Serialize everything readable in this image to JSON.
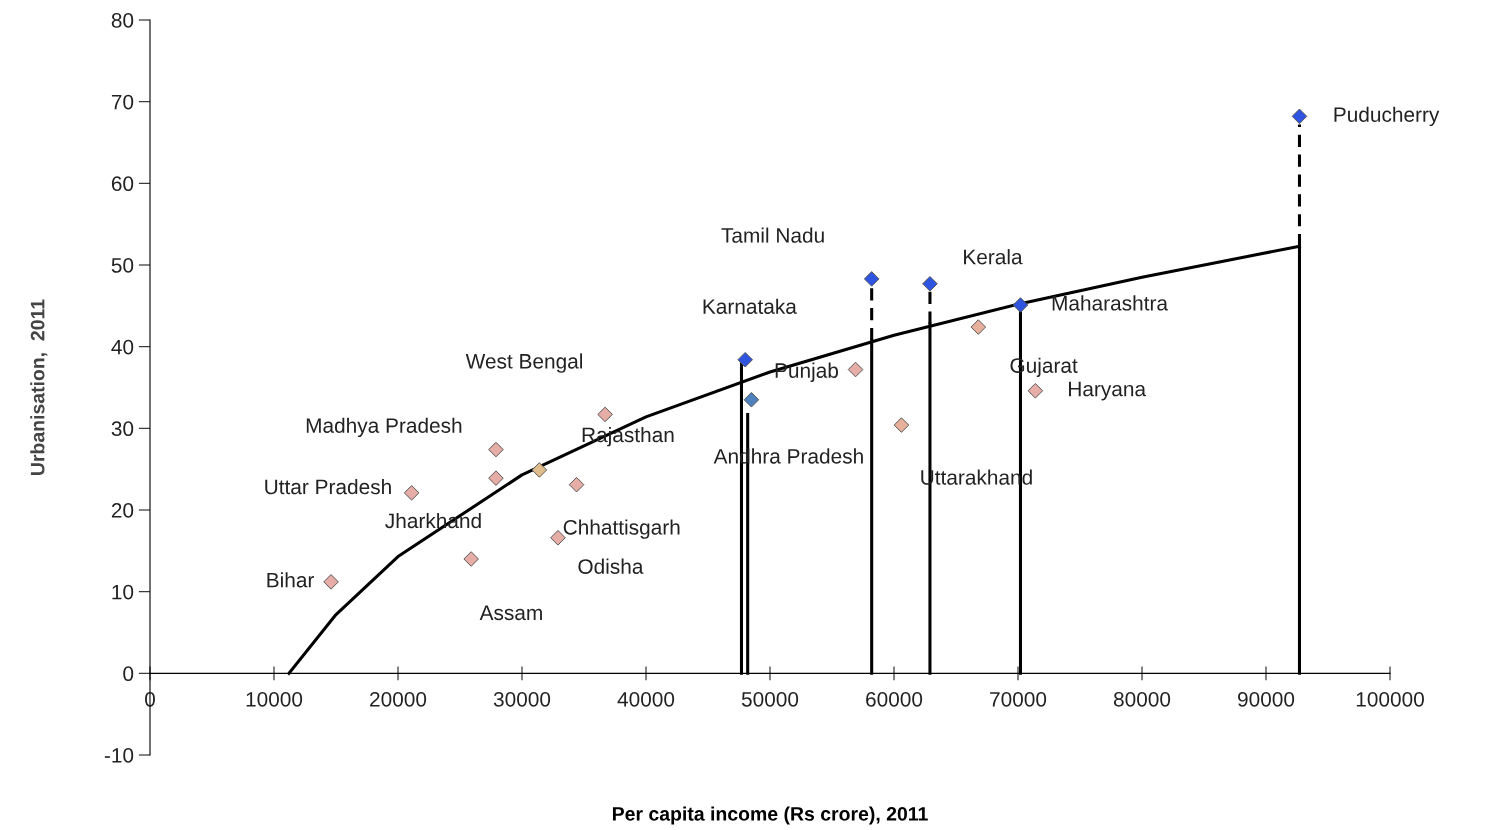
{
  "chart_data": {
    "type": "scatter",
    "xlabel": "Per capita income (Rs crore), 2011",
    "ylabel": "Urbanisation,  2011",
    "xlim": [
      0,
      100000
    ],
    "xticks": [
      0,
      10000,
      20000,
      30000,
      40000,
      50000,
      60000,
      70000,
      80000,
      90000,
      100000
    ],
    "ylim": [
      -10,
      80
    ],
    "yticks": [
      -10,
      0,
      10,
      20,
      30,
      40,
      50,
      60,
      70,
      80
    ],
    "grid": false,
    "marker": "diamond",
    "series": [
      {
        "type": "scatter",
        "x": [
          14600,
          21100,
          27900,
          27900,
          25900,
          31400,
          34400,
          32900,
          36700,
          56900,
          60600,
          66800,
          71400
        ],
        "values": [
          11.2,
          22.1,
          27.4,
          23.9,
          14.0,
          24.9,
          23.1,
          16.6,
          31.7,
          37.2,
          30.4,
          42.4,
          34.6
        ],
        "colors": [
          "#e6aca6",
          "#e6aca6",
          "#e6aca6",
          "#e6aca6",
          "#e6aca6",
          "#e0bc8c",
          "#e6aca6",
          "#e6aca6",
          "#e6aca6",
          "#e6aca6",
          "#e6b09a",
          "#e6b09a",
          "#e6aca6"
        ]
      },
      {
        "type": "scatter",
        "x": [
          48000,
          48500,
          58200,
          62900,
          70200,
          92700
        ],
        "values": [
          38.4,
          33.5,
          48.3,
          47.7,
          45.1,
          68.2
        ],
        "colors": [
          "#2f55e0",
          "#4f81bd",
          "#2f55e0",
          "#2f55e0",
          "#2f55e0",
          "#2f55e0"
        ]
      },
      {
        "type": "line",
        "color": "#000000",
        "line_style": "solid",
        "marker": "none",
        "x": [
          11200,
          15000,
          20000,
          30000,
          40000,
          50000,
          60000,
          70000,
          80000,
          92700
        ],
        "values": [
          0,
          7.2,
          14.3,
          24.3,
          31.4,
          36.9,
          41.4,
          45.2,
          48.5,
          52.3
        ]
      },
      {
        "type": "line",
        "color": "#000000",
        "line_style": "solid",
        "marker": "none",
        "x": [
          47700,
          47700
        ],
        "values": [
          0,
          38.4
        ]
      },
      {
        "type": "line",
        "color": "#000000",
        "line_style": "solid",
        "marker": "none",
        "x": [
          48200,
          48200
        ],
        "values": [
          0,
          31.7
        ]
      },
      {
        "type": "line",
        "color": "#000000",
        "line_style": "solid",
        "marker": "none",
        "x": [
          58200,
          58200
        ],
        "values": [
          0,
          40.8
        ]
      },
      {
        "type": "line",
        "color": "#000000",
        "line_style": "dashed",
        "marker": "none",
        "x": [
          58200,
          58200
        ],
        "values": [
          40.8,
          47.5
        ]
      },
      {
        "type": "line",
        "color": "#000000",
        "line_style": "solid",
        "marker": "none",
        "x": [
          62900,
          62900
        ],
        "values": [
          0,
          42.8
        ]
      },
      {
        "type": "line",
        "color": "#000000",
        "line_style": "dashed",
        "marker": "none",
        "x": [
          62900,
          62900
        ],
        "values": [
          42.8,
          47.0
        ]
      },
      {
        "type": "line",
        "color": "#000000",
        "line_style": "solid",
        "marker": "none",
        "x": [
          70200,
          70200
        ],
        "values": [
          0,
          44.2
        ]
      },
      {
        "type": "line",
        "color": "#000000",
        "line_style": "solid",
        "marker": "none",
        "x": [
          92700,
          92700
        ],
        "values": [
          0,
          52.3
        ]
      },
      {
        "type": "line",
        "color": "#000000",
        "line_style": "dashed",
        "marker": "none",
        "x": [
          92700,
          92700
        ],
        "values": [
          52.3,
          67.2
        ]
      }
    ],
    "annotations": [
      {
        "text": "Bihar",
        "x": 14600,
        "y": 11.2
      },
      {
        "text": "Uttar Pradesh",
        "x": 21100,
        "y": 22.1
      },
      {
        "text": "Madhya Pradesh",
        "x": 27900,
        "y": 27.4
      },
      {
        "text": "Jharkhand",
        "x": 27900,
        "y": 23.9
      },
      {
        "text": "Assam",
        "x": 25900,
        "y": 14.0
      },
      {
        "text": "Rajasthan",
        "x": 31400,
        "y": 24.9
      },
      {
        "text": "Chhattisgarh",
        "x": 34400,
        "y": 23.1
      },
      {
        "text": "Odisha",
        "x": 32900,
        "y": 16.6
      },
      {
        "text": "West Bengal",
        "x": 36700,
        "y": 31.7
      },
      {
        "text": "Karnataka",
        "x": 48000,
        "y": 38.4
      },
      {
        "text": "Andhra Pradesh",
        "x": 48500,
        "y": 33.5
      },
      {
        "text": "Tamil Nadu",
        "x": 58200,
        "y": 48.3
      },
      {
        "text": "Kerala",
        "x": 62900,
        "y": 47.7
      },
      {
        "text": "Maharashtra",
        "x": 70200,
        "y": 45.1
      },
      {
        "text": "Punjab",
        "x": 56900,
        "y": 37.2
      },
      {
        "text": "Uttarakhand",
        "x": 60600,
        "y": 30.4
      },
      {
        "text": "Gujarat",
        "x": 66800,
        "y": 42.4
      },
      {
        "text": "Haryana",
        "x": 71400,
        "y": 34.6
      },
      {
        "text": "Puducherry",
        "x": 92700,
        "y": 68.2
      }
    ]
  }
}
